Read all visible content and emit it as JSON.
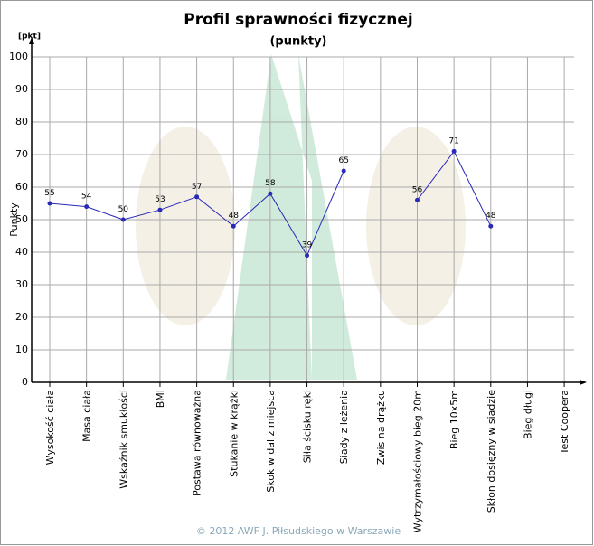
{
  "chart_data": {
    "type": "line",
    "title": "Profil sprawności fizycznej",
    "subtitle": "(punkty)",
    "y_unit": "[pkt]",
    "y_label": "Punkty",
    "footer": "© 2012 AWF J. Piłsudskiego w Warszawie",
    "categories": [
      "Wysokość ciała",
      "Masa ciała",
      "Wskaźnik smukłości",
      "BMI",
      "Postawa równoważna",
      "Stukanie w krążki",
      "Skok w dal z miejsca",
      "Siła ścisku ręki",
      "Siady z leżenia",
      "Zwis na drążku",
      "Wytrzymałościowy bieg 20m",
      "Bieg 10x5m",
      "Skłon dosięzny w siadzie",
      "Bieg długi",
      "Test Coopera"
    ],
    "series": [
      {
        "name": "Punkty",
        "color": "#2a2ab8",
        "values": [
          55,
          54,
          50,
          53,
          57,
          48,
          58,
          39,
          65,
          null,
          56,
          71,
          48,
          null,
          null
        ]
      }
    ],
    "ylim": [
      0,
      100
    ],
    "yticks": [
      0,
      10,
      20,
      30,
      40,
      50,
      60,
      70,
      80,
      90,
      100
    ],
    "grid": true
  }
}
